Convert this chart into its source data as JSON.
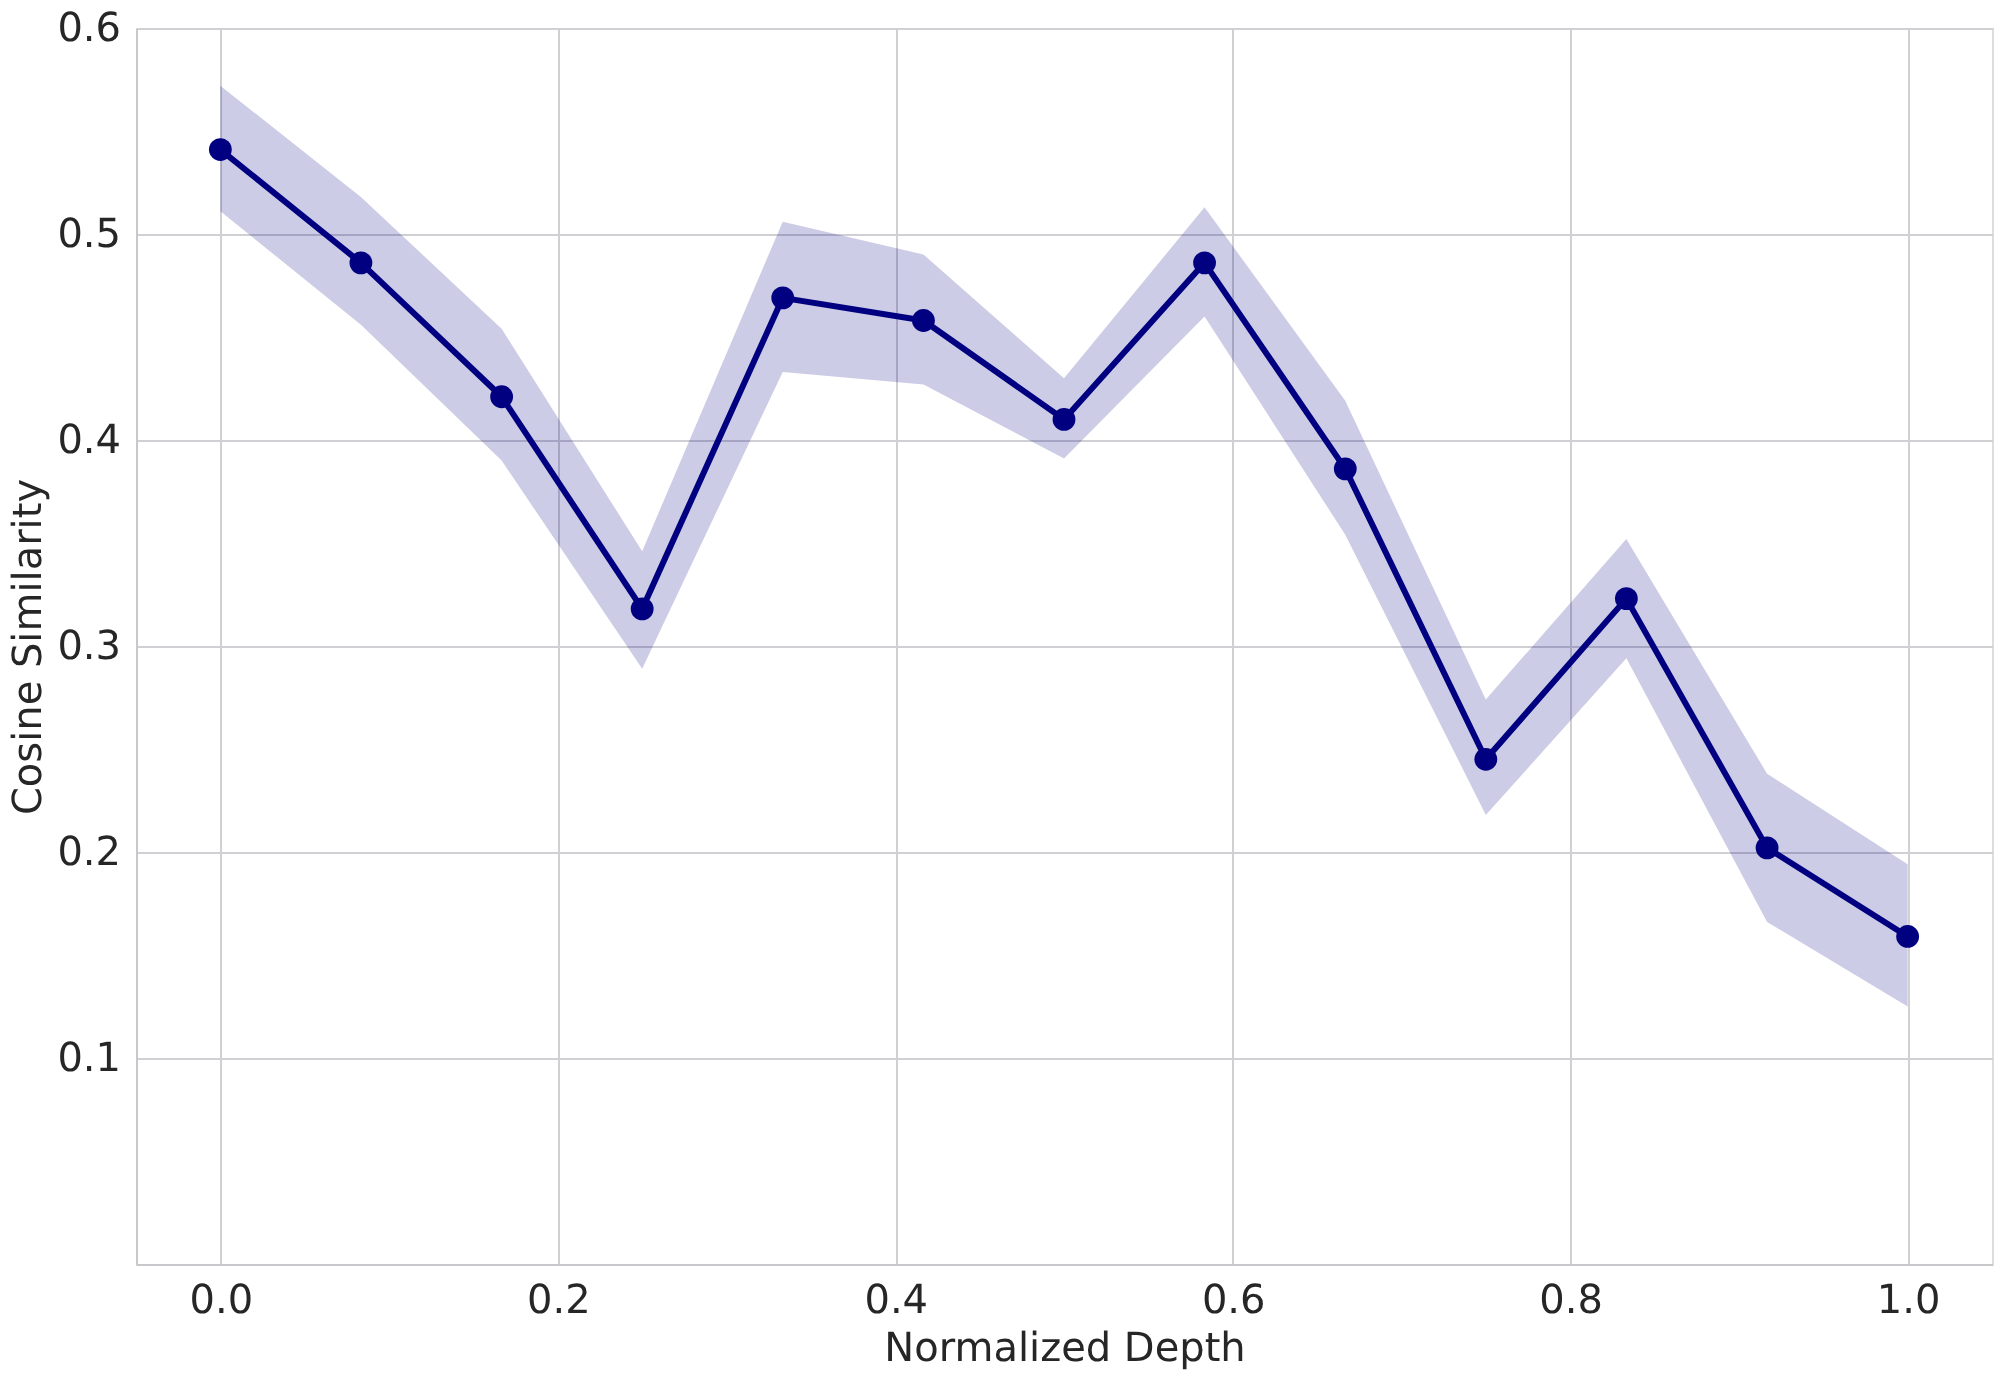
{
  "chart_data": {
    "type": "line",
    "xlabel": "Normalized Depth",
    "ylabel": "Cosine Similarity",
    "x": [
      0,
      0.0833,
      0.1667,
      0.25,
      0.3333,
      0.4167,
      0.5,
      0.5833,
      0.6667,
      0.75,
      0.8333,
      0.9167,
      1.0
    ],
    "series": [
      {
        "color": "#000080",
        "values": [
          0.541,
          0.486,
          0.421,
          0.318,
          0.469,
          0.458,
          0.41,
          0.486,
          0.386,
          0.245,
          0.323,
          0.202,
          0.159
        ],
        "lower": [
          0.511,
          0.456,
          0.39,
          0.289,
          0.433,
          0.427,
          0.391,
          0.46,
          0.354,
          0.218,
          0.294,
          0.166,
          0.125
        ],
        "upper": [
          0.572,
          0.518,
          0.454,
          0.346,
          0.506,
          0.49,
          0.43,
          0.513,
          0.419,
          0.274,
          0.352,
          0.238,
          0.194
        ]
      }
    ],
    "xlim": [
      -0.05,
      1.05
    ],
    "ylim": [
      0,
      0.6
    ],
    "xticks": [
      {
        "value": 0,
        "label": "0.0"
      },
      {
        "value": 0.2,
        "label": "0.2"
      },
      {
        "value": 0.4,
        "label": "0.4"
      },
      {
        "value": 0.6,
        "label": "0.6"
      },
      {
        "value": 0.8,
        "label": "0.8"
      },
      {
        "value": 1.0,
        "label": "1.0"
      }
    ],
    "yticks": [
      0.1,
      0.2,
      0.3,
      0.4,
      0.5,
      0.6
    ],
    "grid": true,
    "marker": "circle",
    "line_style": "solid"
  }
}
